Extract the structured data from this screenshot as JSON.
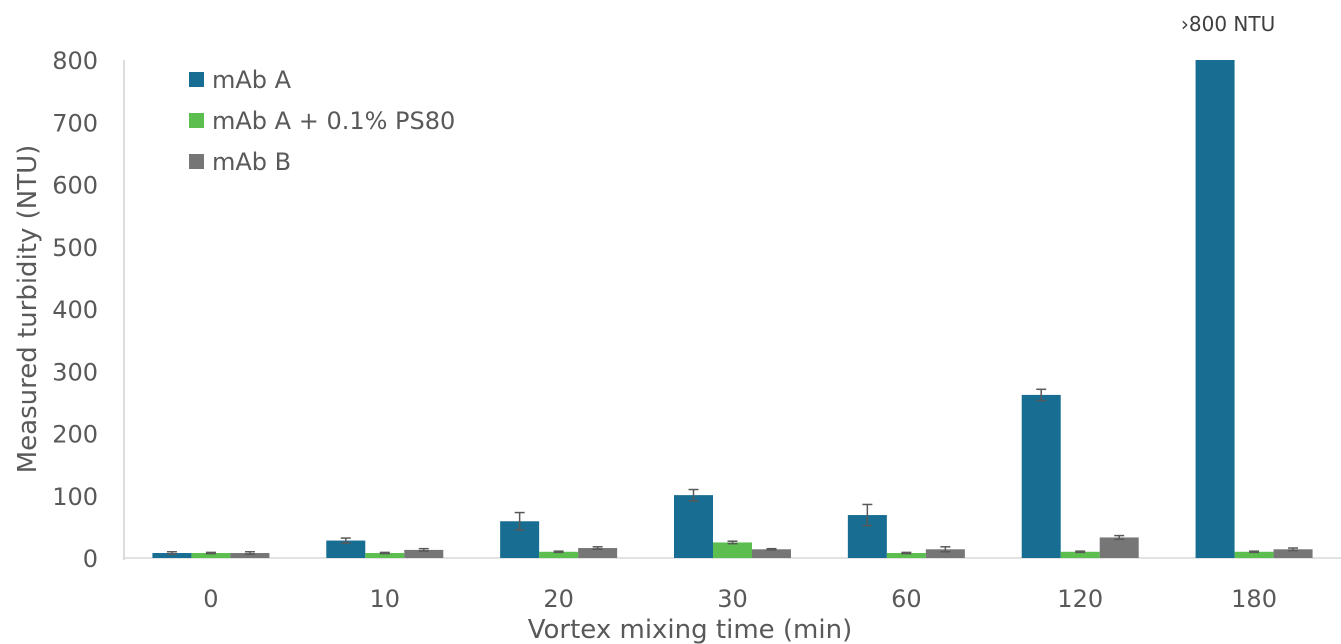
{
  "chart_data": {
    "type": "bar",
    "title": "",
    "xlabel": "Vortex mixing time (min)",
    "ylabel": "Measured turbidity (NTU)",
    "ylim": [
      0,
      800
    ],
    "yticks": [
      0,
      100,
      200,
      300,
      400,
      500,
      600,
      700,
      800
    ],
    "categories": [
      "0",
      "10",
      "20",
      "30",
      "60",
      "120",
      "180"
    ],
    "series": [
      {
        "name": "mAb A",
        "color": "#176D92",
        "values": [
          8,
          28,
          59,
          101,
          69,
          262,
          800
        ],
        "errors": [
          2,
          4,
          14,
          9,
          17,
          9,
          0
        ]
      },
      {
        "name": "mAb A + 0.1% PS80",
        "color": "#5DBE50",
        "values": [
          8,
          8,
          10,
          25,
          8,
          10,
          10
        ],
        "errors": [
          1,
          1,
          1,
          2,
          1,
          1,
          1
        ]
      },
      {
        "name": "mAb B",
        "color": "#767677",
        "values": [
          8,
          13,
          16,
          14,
          14,
          33,
          14
        ],
        "errors": [
          2,
          2,
          2,
          1,
          4,
          3,
          2
        ]
      }
    ],
    "legend_position": "top-left",
    "grid": false,
    "annotation": {
      "text": "›800 NTU",
      "category_index": 6
    }
  }
}
